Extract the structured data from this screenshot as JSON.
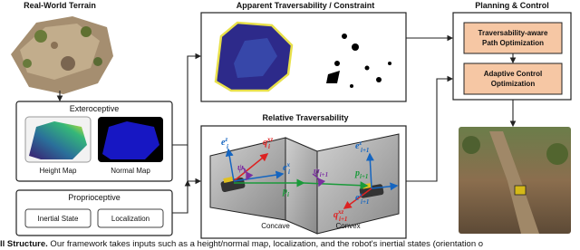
{
  "terrain": {
    "title": "Real-World Terrain"
  },
  "exteroceptive": {
    "title": "Exteroceptive",
    "items": [
      "Height Map",
      "Normal Map"
    ]
  },
  "proprioceptive": {
    "title": "Proprioceptive",
    "items": [
      "Inertial State",
      "Localization"
    ]
  },
  "apparent": {
    "title": "Apparent Traversability / Constraint"
  },
  "relative": {
    "title": "Relative Traversability",
    "labels": [
      {
        "base": "e",
        "sup": "z",
        "sub": "i"
      },
      {
        "base": "q",
        "sup": "xz",
        "sub": "i"
      },
      {
        "base": "ψ",
        "sub": "i"
      },
      {
        "base": "e",
        "sup": "x",
        "sub": "i"
      },
      {
        "base": "p",
        "sub": "i"
      },
      {
        "base": "ψ",
        "sub": "i+1"
      },
      {
        "base": "e",
        "sup": "z",
        "sub": "i+1"
      },
      {
        "base": "p",
        "sub": "i+1"
      },
      {
        "base": "e",
        "sup": "x",
        "sub": "i+1"
      },
      {
        "base": "q",
        "sup": "xz",
        "sub": "i+1"
      }
    ],
    "regions": [
      "Concave",
      "Convex"
    ]
  },
  "planning": {
    "title": "Planning & Control",
    "modules": [
      [
        "Traversability-aware",
        "Path Optimization"
      ],
      [
        "Adaptive Control",
        "Optimization"
      ]
    ]
  },
  "caption": {
    "lead": "ll Structure.",
    "text": " Our framework takes inputs such as a height/normal map, localization, and the robot's inertial states (orientation o"
  }
}
